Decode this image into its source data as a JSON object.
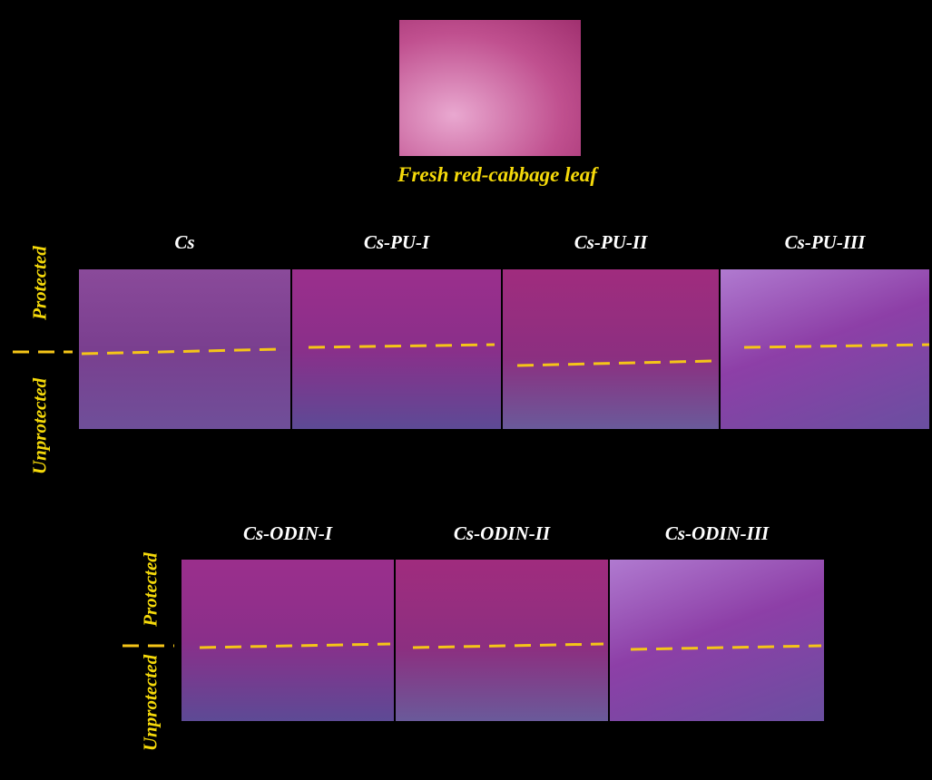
{
  "fresh": {
    "label": "Fresh red-cabbage leaf"
  },
  "rows": [
    {
      "protected_label": "Protected",
      "unprotected_label": "Unprotected",
      "panels": [
        "Cs",
        "Cs-PU-I",
        "Cs-PU-II",
        "Cs-PU-III"
      ]
    },
    {
      "protected_label": "Protected",
      "unprotected_label": "Unprotected",
      "panels": [
        "Cs-ODIN-I",
        "Cs-ODIN-II",
        "Cs-ODIN-III"
      ]
    }
  ]
}
